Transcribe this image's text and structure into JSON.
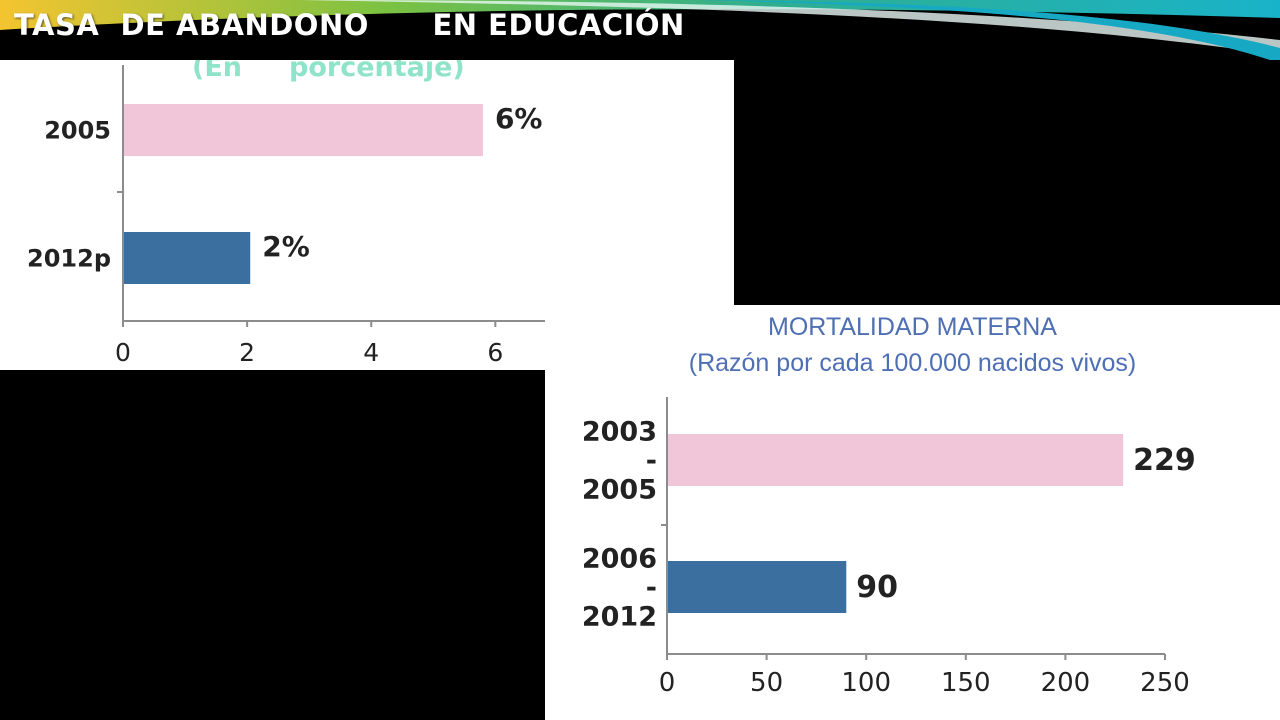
{
  "slide": {
    "title": "TASA  DE ABANDONO      EN EDUCACIÓN",
    "colors": {
      "background": "#000000",
      "title_text": "#ffffff",
      "subtitle_text": "#8fe3c9",
      "swoosh_green": "#6cc24a",
      "swoosh_teal": "#19b3c9"
    }
  },
  "chart_data": [
    {
      "type": "bar",
      "orientation": "horizontal",
      "title": "",
      "subtitle": "(En     porcentaje)",
      "categories": [
        "2005",
        "2012p"
      ],
      "values": [
        5.8,
        2.05
      ],
      "data_labels": [
        "6%",
        "2%"
      ],
      "bar_colors": [
        "#f0c6d8",
        "#3a6fa0"
      ],
      "xlim": [
        0,
        6.8
      ],
      "x_ticks": [
        "0",
        "2",
        "4",
        "6"
      ],
      "tick_values": [
        0,
        2,
        4,
        6
      ],
      "grid": false
    },
    {
      "type": "bar",
      "orientation": "horizontal",
      "title": "MORTALIDAD MATERNA",
      "subtitle": "(Razón por cada 100.000 nacidos vivos)",
      "categories": [
        [
          "2003",
          "-",
          "2005"
        ],
        [
          "2006",
          "-",
          "2012"
        ]
      ],
      "values": [
        229,
        90
      ],
      "data_labels": [
        "229",
        "90"
      ],
      "bar_colors": [
        "#f0c6d8",
        "#3a6fa0"
      ],
      "xlim": [
        0,
        250
      ],
      "x_ticks": [
        "0",
        "50",
        "100",
        "150",
        "200",
        "250"
      ],
      "tick_values": [
        0,
        50,
        100,
        150,
        200,
        250
      ],
      "grid": false,
      "title_color": "#4e6fb4"
    }
  ]
}
